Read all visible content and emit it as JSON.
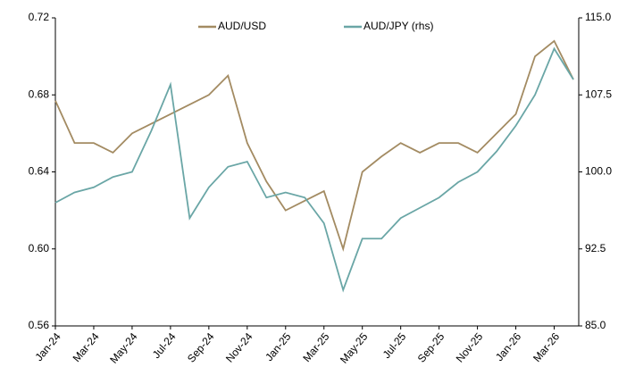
{
  "chart_data": {
    "type": "line",
    "categories": [
      "Jan-24",
      null,
      "Mar-24",
      null,
      "May-24",
      null,
      "Jul-24",
      null,
      "Sep-24",
      null,
      "Nov-24",
      null,
      "Jan-25",
      null,
      "Mar-25",
      null,
      "May-25",
      null,
      "Jul-25",
      null,
      "Sep-25",
      null,
      "Nov-25",
      null,
      "Jan-26",
      null,
      "Mar-26",
      null
    ],
    "series": [
      {
        "name": "AUD/USD",
        "color": "#a38b62",
        "values": [
          0.677,
          0.655,
          0.655,
          0.65,
          0.66,
          0.665,
          0.67,
          0.675,
          0.68,
          0.69,
          0.655,
          0.635,
          0.62,
          0.625,
          0.63,
          0.6,
          0.64,
          0.648,
          0.655,
          0.65,
          0.655,
          0.655,
          0.65,
          0.66,
          0.67,
          0.7,
          0.708,
          0.688
        ]
      },
      {
        "name": "AUD/JPY (rhs)",
        "color": "#6aa6a6",
        "axis": "y2",
        "values": [
          97.0,
          98.0,
          98.5,
          99.5,
          100.0,
          104.0,
          108.5,
          95.5,
          98.5,
          100.5,
          101.0,
          97.5,
          98.0,
          97.5,
          95.0,
          88.5,
          93.5,
          93.5,
          95.5,
          96.5,
          97.5,
          99.0,
          100.0,
          102.0,
          104.5,
          107.5,
          112.0,
          109.0
        ]
      }
    ],
    "ylim": [
      0.56,
      0.72
    ],
    "yticks": [
      {
        "value": 0.56,
        "label": "0.56"
      },
      {
        "value": 0.6,
        "label": "0.60"
      },
      {
        "value": 0.64,
        "label": "0.64"
      },
      {
        "value": 0.68,
        "label": "0.68"
      },
      {
        "value": 0.72,
        "label": "0.72"
      }
    ],
    "y2lim": [
      85,
      115
    ],
    "y2ticks": [
      {
        "value": 85,
        "label": "85.0"
      },
      {
        "value": 92.5,
        "label": "92.5"
      },
      {
        "value": 100,
        "label": "100.0"
      },
      {
        "value": 107.5,
        "label": "107.5"
      },
      {
        "value": 115,
        "label": "115.0"
      }
    ],
    "legend": "top"
  }
}
